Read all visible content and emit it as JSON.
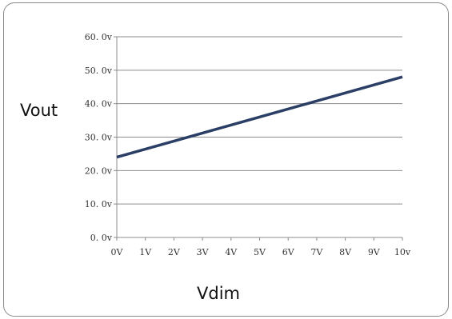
{
  "chart_data": {
    "type": "line",
    "xlabel": "Vdim",
    "ylabel": "Vout",
    "x_tick_labels": [
      "0V",
      "1V",
      "2V",
      "3V",
      "4V",
      "5V",
      "6V",
      "7V",
      "8V",
      "9V",
      "10v"
    ],
    "y_tick_labels": [
      "0. 0v",
      "10. 0v",
      "20. 0v",
      "30. 0v",
      "40. 0v",
      "50. 0v",
      "60. 0v"
    ],
    "xlim": [
      0,
      10
    ],
    "ylim": [
      0,
      60
    ],
    "grid": "horizontal",
    "series": [
      {
        "color": "#2b3f66",
        "x": [
          0,
          10
        ],
        "y": [
          24,
          48
        ]
      }
    ]
  }
}
